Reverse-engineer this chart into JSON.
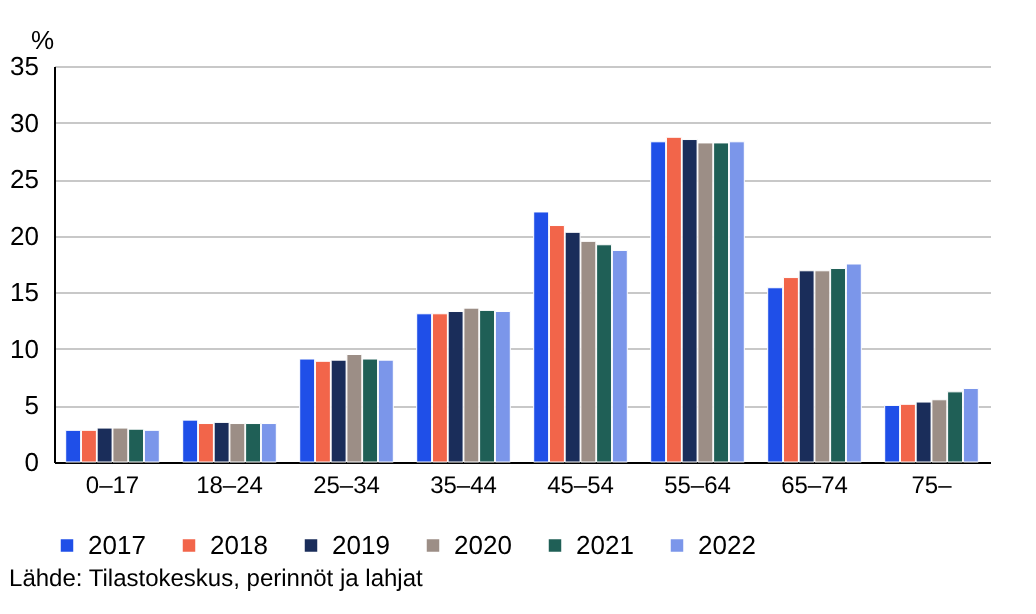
{
  "chart_data": {
    "type": "bar",
    "ylabel": "%",
    "categories": [
      "0–17",
      "18–24",
      "25–34",
      "35–44",
      "45–54",
      "55–64",
      "65–74",
      "75–"
    ],
    "series": [
      {
        "name": "2017",
        "color": "#1f4fe8",
        "values": [
          2.8,
          3.7,
          9.1,
          13.1,
          22.1,
          28.3,
          15.4,
          5.0
        ]
      },
      {
        "name": "2018",
        "color": "#f2654a",
        "values": [
          2.8,
          3.4,
          8.9,
          13.1,
          20.9,
          28.7,
          16.3,
          5.1
        ]
      },
      {
        "name": "2019",
        "color": "#1a2d5a",
        "values": [
          3.0,
          3.5,
          9.0,
          13.3,
          20.3,
          28.5,
          16.9,
          5.3
        ]
      },
      {
        "name": "2020",
        "color": "#9c8e86",
        "values": [
          3.0,
          3.4,
          9.5,
          13.6,
          19.5,
          28.2,
          16.9,
          5.5
        ]
      },
      {
        "name": "2021",
        "color": "#1f5f56",
        "values": [
          2.9,
          3.4,
          9.1,
          13.4,
          19.2,
          28.2,
          17.1,
          6.2
        ]
      },
      {
        "name": "2022",
        "color": "#7b96ea",
        "values": [
          2.8,
          3.4,
          9.0,
          13.3,
          18.7,
          28.3,
          17.5,
          6.5
        ]
      }
    ],
    "ylim": [
      0,
      35
    ],
    "yticks": [
      0,
      5,
      10,
      15,
      20,
      25,
      30,
      35
    ],
    "grid": "y",
    "legend": "bottom",
    "annotations": [
      "Lähde: Tilastokeskus, perinnöt ja lahjat"
    ]
  }
}
